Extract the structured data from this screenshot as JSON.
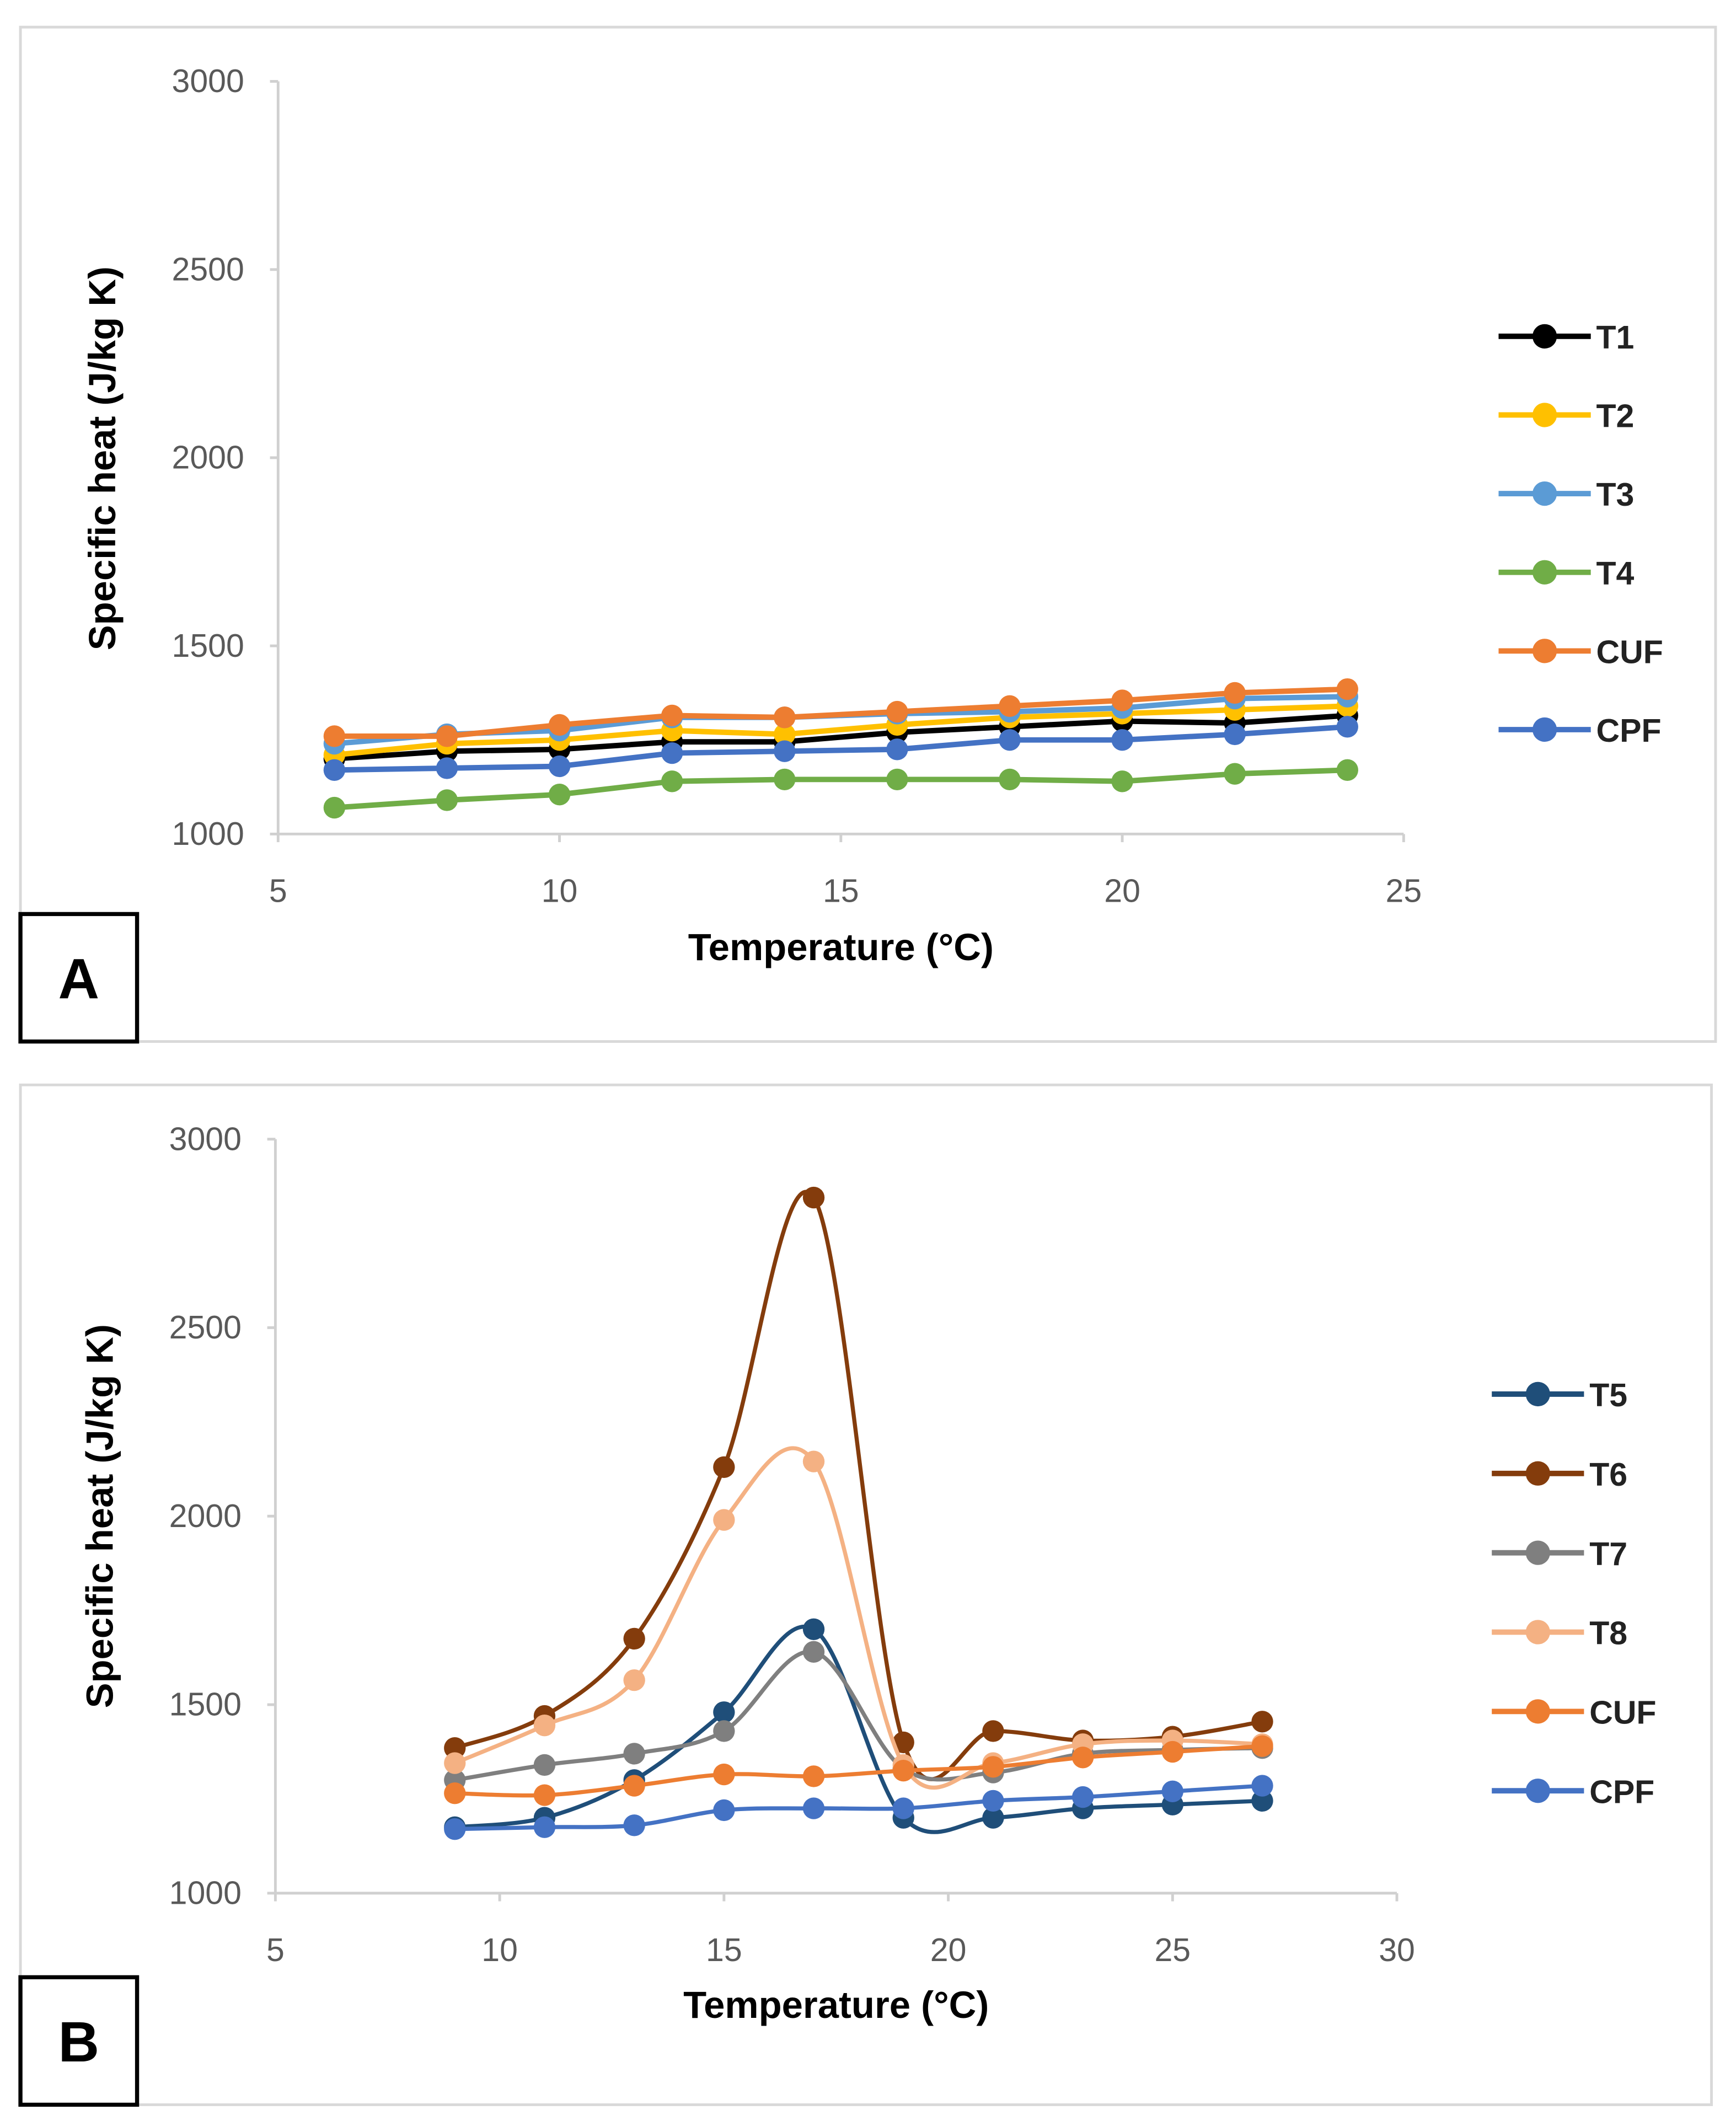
{
  "chart_data": [
    {
      "type": "line",
      "panel_label": "A",
      "xlabel": "Temperature (°C)",
      "ylabel": "Specific heat (J/kg K)",
      "xlim": [
        5,
        25
      ],
      "xticks": [
        5,
        10,
        15,
        20,
        25
      ],
      "ylim": [
        1000,
        3000
      ],
      "yticks": [
        1000,
        1500,
        2000,
        2500,
        3000
      ],
      "grid": false,
      "legend": "right",
      "smooth": false,
      "x": [
        6,
        8,
        10,
        12,
        14,
        16,
        18,
        20,
        22,
        24
      ],
      "series": [
        {
          "name": "T1",
          "color": "#000000",
          "values": [
            1200,
            1220,
            1225,
            1245,
            1245,
            1270,
            1285,
            1300,
            1295,
            1315
          ]
        },
        {
          "name": "T2",
          "color": "#FFC000",
          "values": [
            1210,
            1240,
            1250,
            1275,
            1265,
            1290,
            1310,
            1320,
            1330,
            1340
          ]
        },
        {
          "name": "T3",
          "color": "#5B9BD5",
          "values": [
            1240,
            1265,
            1275,
            1310,
            1310,
            1320,
            1325,
            1335,
            1360,
            1365
          ]
        },
        {
          "name": "T4",
          "color": "#70AD47",
          "values": [
            1070,
            1090,
            1105,
            1140,
            1145,
            1145,
            1145,
            1140,
            1160,
            1170
          ]
        },
        {
          "name": "CUF",
          "color": "#ED7D31",
          "values": [
            1260,
            1260,
            1290,
            1315,
            1310,
            1325,
            1340,
            1355,
            1375,
            1385
          ]
        },
        {
          "name": "CPF",
          "color": "#4472C4",
          "values": [
            1170,
            1175,
            1180,
            1215,
            1220,
            1225,
            1250,
            1250,
            1265,
            1285
          ]
        }
      ]
    },
    {
      "type": "line",
      "panel_label": "B",
      "xlabel": "Temperature (°C)",
      "ylabel": "Specific heat (J/kg K)",
      "xlim": [
        5,
        30
      ],
      "xticks": [
        5,
        10,
        15,
        20,
        25,
        30
      ],
      "ylim": [
        1000,
        3000
      ],
      "yticks": [
        1000,
        1500,
        2000,
        2500,
        3000
      ],
      "grid": false,
      "legend": "right",
      "smooth": true,
      "x": [
        9,
        11,
        13,
        15,
        17,
        19,
        21,
        23,
        25,
        27
      ],
      "series": [
        {
          "name": "T5",
          "color": "#1F4E79",
          "values": [
            1175,
            1200,
            1300,
            1480,
            1700,
            1200,
            1200,
            1225,
            1235,
            1245
          ]
        },
        {
          "name": "T6",
          "color": "#843C0C",
          "values": [
            1385,
            1470,
            1675,
            2130,
            2845,
            1400,
            1430,
            1405,
            1415,
            1455
          ]
        },
        {
          "name": "T7",
          "color": "#7F7F7F",
          "values": [
            1300,
            1340,
            1370,
            1430,
            1640,
            1330,
            1320,
            1370,
            1380,
            1385
          ]
        },
        {
          "name": "T8",
          "color": "#F4B183",
          "values": [
            1345,
            1445,
            1565,
            1990,
            2145,
            1340,
            1345,
            1395,
            1405,
            1395
          ]
        },
        {
          "name": "CUF",
          "color": "#ED7D31",
          "values": [
            1265,
            1260,
            1285,
            1315,
            1310,
            1325,
            1335,
            1360,
            1375,
            1390
          ]
        },
        {
          "name": "CPF",
          "color": "#4472C4",
          "values": [
            1170,
            1175,
            1180,
            1220,
            1225,
            1225,
            1245,
            1255,
            1270,
            1285
          ]
        }
      ]
    }
  ]
}
